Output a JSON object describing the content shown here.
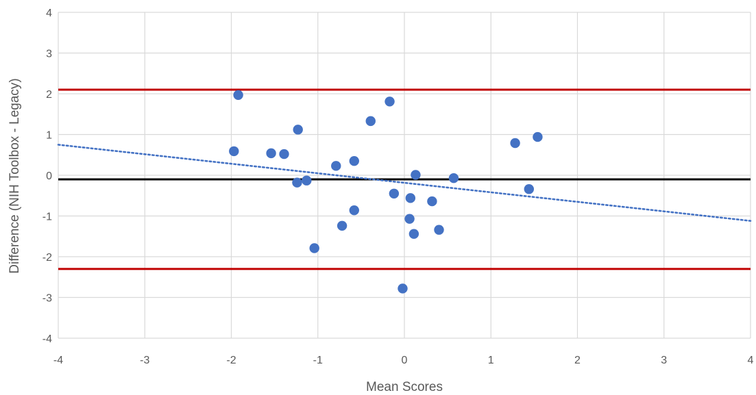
{
  "chart_data": {
    "type": "scatter",
    "title": "",
    "xlabel": "Mean Scores",
    "ylabel": "Difference (NIH Toolbox - Legacy)",
    "xlim": [
      -4,
      4
    ],
    "ylim": [
      -4,
      4
    ],
    "x_ticks": [
      -4,
      -3,
      -2,
      -1,
      0,
      1,
      2,
      3,
      4
    ],
    "y_ticks": [
      -4,
      -3,
      -2,
      -1,
      0,
      1,
      2,
      3,
      4
    ],
    "grid": true,
    "series": [
      {
        "type": "scatter",
        "color": "#4472C4",
        "points": [
          {
            "x": -1.92,
            "y": 1.97
          },
          {
            "x": -1.97,
            "y": 0.59
          },
          {
            "x": -1.54,
            "y": 0.54
          },
          {
            "x": -1.39,
            "y": 0.52
          },
          {
            "x": -1.23,
            "y": 1.12
          },
          {
            "x": -1.24,
            "y": -0.18
          },
          {
            "x": -1.13,
            "y": -0.13
          },
          {
            "x": -1.04,
            "y": -1.79
          },
          {
            "x": -0.79,
            "y": 0.23
          },
          {
            "x": -0.72,
            "y": -1.24
          },
          {
            "x": -0.58,
            "y": 0.35
          },
          {
            "x": -0.58,
            "y": -0.86
          },
          {
            "x": -0.39,
            "y": 1.33
          },
          {
            "x": -0.17,
            "y": 1.81
          },
          {
            "x": -0.12,
            "y": -0.45
          },
          {
            "x": -0.02,
            "y": -2.78
          },
          {
            "x": 0.06,
            "y": -1.07
          },
          {
            "x": 0.07,
            "y": -0.56
          },
          {
            "x": 0.11,
            "y": -1.44
          },
          {
            "x": 0.13,
            "y": 0.01
          },
          {
            "x": 0.32,
            "y": -0.64
          },
          {
            "x": 0.4,
            "y": -1.34
          },
          {
            "x": 0.57,
            "y": -0.07
          },
          {
            "x": 1.28,
            "y": 0.79
          },
          {
            "x": 1.44,
            "y": -0.34
          },
          {
            "x": 1.54,
            "y": 0.94
          }
        ]
      }
    ],
    "reference_lines": [
      {
        "y": 2.1,
        "color": "#C00000"
      },
      {
        "y": -0.1,
        "color": "#000000"
      },
      {
        "y": -2.3,
        "color": "#C00000"
      }
    ],
    "trendline": {
      "style": "dotted",
      "color": "#4472C4",
      "from": [
        -4,
        0.75
      ],
      "to": [
        4,
        -1.12
      ]
    }
  }
}
